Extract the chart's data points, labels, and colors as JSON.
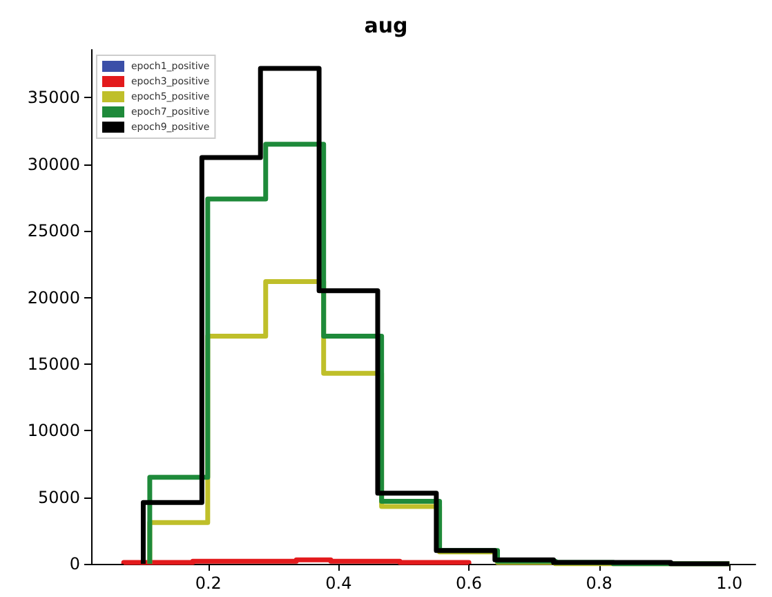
{
  "chart_data": {
    "type": "step",
    "title": "aug",
    "series": [
      {
        "name": "epoch1_positive",
        "color": "#3b4fa8"
      },
      {
        "name": "epoch3_positive",
        "color": "#e31a1c",
        "x": [
          0.07,
          0.07,
          0.123,
          0.176,
          0.229,
          0.282,
          0.335,
          0.388,
          0.441,
          0.494,
          0.547,
          0.6
        ],
        "values": [
          0,
          100,
          100,
          200,
          200,
          200,
          300,
          200,
          200,
          100,
          100,
          0
        ]
      },
      {
        "name": "epoch5_positive",
        "color": "#bfbf2a",
        "x": [
          0.11,
          0.11,
          0.199,
          0.288,
          0.377,
          0.466,
          0.555,
          0.644,
          0.733,
          0.822,
          0.911,
          1.0
        ],
        "values": [
          0,
          3100,
          17100,
          21200,
          14300,
          4300,
          900,
          100,
          0,
          0,
          0,
          0
        ]
      },
      {
        "name": "epoch7_positive",
        "color": "#1e8a3a",
        "x": [
          0.11,
          0.11,
          0.199,
          0.288,
          0.377,
          0.466,
          0.555,
          0.644,
          0.733,
          0.822,
          0.911,
          1.0
        ],
        "values": [
          0,
          6500,
          27400,
          31500,
          17100,
          4700,
          1000,
          200,
          100,
          0,
          0,
          0
        ]
      },
      {
        "name": "epoch9_positive",
        "color": "#000000",
        "x": [
          0.1,
          0.1,
          0.19,
          0.28,
          0.37,
          0.46,
          0.55,
          0.64,
          0.73,
          0.82,
          0.91,
          1.0
        ],
        "values": [
          0,
          4600,
          30500,
          37200,
          20500,
          5300,
          1000,
          300,
          100,
          100,
          0,
          0
        ]
      }
    ],
    "xlim": [
      0.02,
      1.04
    ],
    "xticks": [
      {
        "value": 0.2,
        "label": "0.2"
      },
      {
        "value": 0.4,
        "label": "0.4"
      },
      {
        "value": 0.6,
        "label": "0.6"
      },
      {
        "value": 0.8,
        "label": "0.8"
      },
      {
        "value": 1.0,
        "label": "1.0"
      }
    ],
    "ylim": [
      0,
      38600
    ],
    "yticks": [
      0,
      5000,
      10000,
      15000,
      20000,
      25000,
      30000,
      35000
    ],
    "legend": "top left",
    "grid": false
  }
}
